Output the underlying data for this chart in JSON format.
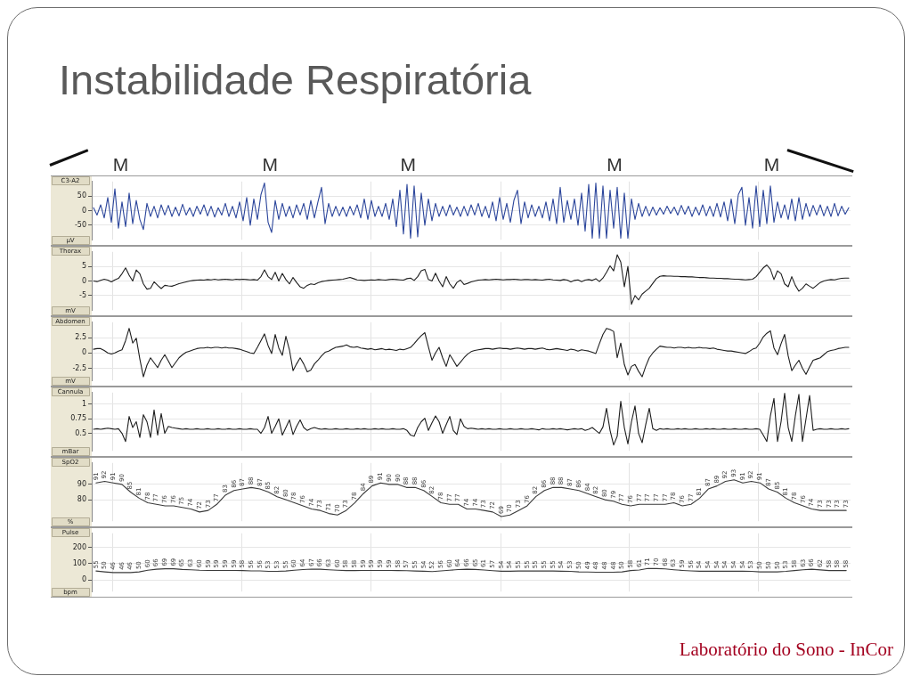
{
  "chart_data": [
    {
      "type": "other",
      "title": "Instabilidade Respiratória"
    },
    {
      "type": "line",
      "title": "C3-A2",
      "ylabel": "µV",
      "annotations": [
        "M",
        "M",
        "M",
        "M",
        "M"
      ],
      "marker": "none",
      "grid": true,
      "ylim": [
        -100,
        100
      ],
      "yticks": [
        -50,
        0,
        50
      ],
      "color": "#2b459b",
      "categories": [
        null,
        null,
        null,
        null,
        null,
        null,
        null,
        null,
        null,
        null,
        null,
        null,
        null,
        null,
        null,
        null,
        null,
        null,
        null,
        null,
        null,
        null,
        null,
        null,
        null,
        null,
        null,
        null,
        null,
        null,
        null,
        null,
        null,
        null,
        null,
        null,
        null,
        null,
        null,
        null,
        null,
        null,
        null,
        null,
        null,
        null,
        null,
        null,
        null,
        null,
        null,
        null,
        null,
        null,
        null,
        null,
        null,
        null,
        null,
        null,
        null,
        null,
        null,
        null,
        null,
        null,
        null,
        null,
        null,
        null,
        null,
        null,
        null,
        null,
        null,
        null,
        null,
        null,
        null,
        null,
        null,
        null,
        null,
        null,
        null,
        null,
        null,
        null,
        null,
        null,
        null,
        null,
        null,
        null,
        null,
        null,
        null,
        null,
        null,
        null,
        null,
        null,
        null,
        null,
        null,
        null,
        null,
        null,
        null,
        null,
        null,
        null,
        null,
        null,
        null,
        null,
        null,
        null,
        null,
        null,
        null,
        null,
        null,
        null,
        null,
        null,
        null,
        null,
        null,
        null,
        null,
        null,
        null,
        null,
        null,
        null,
        null,
        null,
        null,
        null,
        null,
        null,
        null,
        null,
        null,
        null,
        null,
        null,
        null,
        null,
        null,
        null,
        null,
        null,
        null,
        null,
        null,
        null,
        null,
        null,
        null,
        null,
        null,
        null,
        null,
        null,
        null,
        null,
        null,
        null,
        null,
        null,
        null,
        null,
        null,
        null,
        null,
        null,
        null,
        null,
        null,
        null,
        null,
        null,
        null,
        null,
        null,
        null,
        null,
        null,
        null,
        null,
        null,
        null,
        null,
        null,
        null,
        null,
        null,
        null,
        null,
        null,
        null,
        null,
        null,
        null,
        null,
        null,
        null,
        null,
        null,
        null,
        null
      ],
      "values": [
        10,
        -15,
        20,
        -25,
        45,
        -40,
        75,
        -60,
        30,
        -55,
        60,
        -45,
        35,
        -30,
        -65,
        25,
        -20,
        15,
        -25,
        20,
        -15,
        18,
        -20,
        12,
        -18,
        22,
        -15,
        10,
        -20,
        15,
        -12,
        20,
        -18,
        15,
        -22,
        10,
        -15,
        25,
        -20,
        15,
        -25,
        30,
        -35,
        45,
        -50,
        40,
        -30,
        55,
        95,
        -40,
        -75,
        35,
        -30,
        25,
        -20,
        15,
        -25,
        20,
        -15,
        25,
        -30,
        35,
        -25,
        30,
        80,
        -45,
        25,
        -20,
        15,
        -18,
        12,
        -20,
        15,
        -15,
        20,
        -25,
        40,
        -30,
        35,
        -20,
        15,
        -20,
        25,
        -30,
        40,
        -55,
        70,
        -80,
        90,
        -95,
        85,
        -90,
        60,
        -50,
        40,
        -35,
        25,
        -20,
        15,
        -18,
        20,
        -15,
        12,
        -20,
        15,
        -18,
        20,
        -15,
        25,
        -20,
        15,
        -25,
        30,
        -35,
        45,
        -30,
        25,
        -40,
        35,
        70,
        -45,
        30,
        -25,
        20,
        -20,
        15,
        -25,
        30,
        -35,
        40,
        -45,
        80,
        -40,
        35,
        -30,
        40,
        -50,
        60,
        -70,
        90,
        -95,
        95,
        -95,
        85,
        -95,
        70,
        -60,
        80,
        -95,
        60,
        -95,
        40,
        -30,
        25,
        -20,
        15,
        -18,
        12,
        -15,
        10,
        -12,
        15,
        -10,
        12,
        -15,
        18,
        -12,
        15,
        -20,
        12,
        -15,
        20,
        -18,
        15,
        -20,
        25,
        -22,
        30,
        -35,
        40,
        -45,
        55,
        80,
        -50,
        45,
        -60,
        85,
        -55,
        70,
        -45,
        85,
        -40,
        30,
        -25,
        20,
        -30,
        40,
        -35,
        45,
        -30,
        25,
        -20,
        18,
        -15,
        20,
        -18,
        15,
        -20,
        25,
        -18,
        15,
        -12,
        10
      ]
    },
    {
      "type": "line",
      "title": "Thorax",
      "ylabel": "mV",
      "marker": "none",
      "grid": true,
      "ylim": [
        -10,
        10
      ],
      "yticks": [
        -5,
        0,
        5
      ],
      "color": "#1e1e1e",
      "categories": [
        null,
        null,
        null,
        null,
        null,
        null,
        null,
        null,
        null,
        null,
        null,
        null,
        null,
        null,
        null,
        null,
        null,
        null,
        null,
        null,
        null,
        null,
        null,
        null,
        null,
        null,
        null,
        null,
        null,
        null,
        null,
        null,
        null,
        null,
        null,
        null,
        null,
        null,
        null,
        null,
        null,
        null,
        null,
        null,
        null,
        null,
        null,
        null,
        null,
        null,
        null,
        null,
        null,
        null,
        null,
        null,
        null,
        null,
        null,
        null,
        null,
        null,
        null,
        null,
        null,
        null,
        null,
        null,
        null,
        null,
        null,
        null,
        null,
        null,
        null,
        null,
        null,
        null,
        null,
        null,
        null,
        null,
        null,
        null,
        null,
        null,
        null,
        null,
        null,
        null,
        null,
        null,
        null,
        null,
        null,
        null,
        null,
        null,
        null,
        null,
        null,
        null,
        null,
        null,
        null,
        null,
        null,
        null,
        null,
        null,
        null,
        null,
        null,
        null,
        null,
        null,
        null,
        null,
        null,
        null,
        null,
        null,
        null,
        null,
        null,
        null,
        null,
        null,
        null,
        null,
        null,
        null,
        null,
        null,
        null,
        null,
        null,
        null,
        null,
        null,
        null,
        null,
        null,
        null,
        null,
        null,
        null,
        null,
        null,
        null,
        null,
        null,
        null,
        null,
        null,
        null,
        null,
        null,
        null,
        null,
        null,
        null,
        null,
        null,
        null,
        null,
        null,
        null,
        null,
        null,
        null,
        null,
        null,
        null,
        null,
        null,
        null,
        null,
        null,
        null,
        null,
        null,
        null,
        null,
        null,
        null,
        null,
        null,
        null,
        null,
        null,
        null,
        null,
        null,
        null,
        null,
        null,
        null,
        null,
        null,
        null,
        null,
        null,
        null,
        null,
        null,
        null,
        null,
        null,
        null,
        null,
        null,
        null
      ],
      "values": [
        0,
        -0.2,
        0.2,
        0.6,
        0.3,
        -0.3,
        0.4,
        0.9,
        2.5,
        4.5,
        2.0,
        0.0,
        3.8,
        2.5,
        -1.0,
        -2.8,
        -2.5,
        -0.3,
        -1.5,
        -2.6,
        -1.5,
        -1.7,
        -1.8,
        -1.4,
        -0.9,
        -0.6,
        -0.3,
        0.0,
        0.2,
        0.3,
        0.4,
        0.3,
        0.5,
        0.4,
        0.6,
        0.4,
        0.5,
        0.6,
        0.5,
        0.4,
        0.6,
        0.5,
        0.6,
        0.5,
        0.4,
        0.5,
        0.3,
        1.5,
        3.8,
        1.5,
        0.5,
        3.0,
        0.0,
        2.6,
        0.5,
        -1.0,
        1.2,
        -0.5,
        -2.0,
        -2.5,
        -1.5,
        -1.0,
        -1.2,
        -0.6,
        -0.2,
        0.0,
        0.2,
        0.3,
        0.4,
        0.5,
        0.6,
        0.9,
        1.2,
        0.8,
        0.4,
        0.3,
        0.2,
        0.3,
        0.4,
        0.3,
        0.5,
        0.4,
        0.3,
        0.5,
        0.6,
        0.5,
        0.4,
        0.3,
        0.8,
        1.0,
        0.2,
        1.5,
        3.5,
        4.0,
        0.5,
        0.0,
        2.7,
        0.0,
        -2.0,
        1.5,
        -1.0,
        -2.5,
        -0.5,
        0.3,
        -1.2,
        -0.8,
        -0.3,
        0.0,
        0.3,
        0.4,
        0.5,
        0.4,
        0.5,
        0.6,
        0.5,
        0.4,
        0.5,
        0.5,
        0.6,
        0.5,
        0.4,
        0.5,
        0.5,
        0.4,
        0.5,
        0.4,
        0.3,
        0.5,
        0.6,
        0.4,
        0.3,
        0.2,
        0.5,
        0.3,
        -0.3,
        0.2,
        0.4,
        -0.2,
        0.3,
        0.5,
        0.2,
        0.8,
        -0.2,
        1.0,
        3.0,
        5.2,
        3.5,
        9.0,
        6.5,
        -2.0,
        5.0,
        -8.0,
        -5.0,
        -6.5,
        -4.5,
        -3.5,
        -2.5,
        -0.8,
        0.8,
        1.6,
        1.8,
        1.7,
        1.7,
        1.6,
        1.6,
        1.5,
        1.5,
        1.4,
        1.4,
        1.3,
        1.2,
        1.2,
        1.1,
        1.0,
        1.0,
        0.9,
        0.9,
        0.8,
        0.8,
        0.7,
        0.6,
        0.6,
        0.5,
        0.4,
        0.5,
        0.6,
        1.5,
        3.0,
        4.5,
        5.5,
        4.0,
        0.5,
        3.5,
        2.5,
        -1.0,
        -2.0,
        1.5,
        -1.5,
        -3.5,
        -2.5,
        -1.0,
        -1.8,
        -2.5,
        -1.5,
        -0.5,
        0.0,
        0.3,
        0.5,
        0.4,
        0.7,
        0.9,
        1.0,
        1.0
      ]
    },
    {
      "type": "line",
      "title": "Abdomen",
      "ylabel": "mV",
      "marker": "none",
      "grid": true,
      "ylim": [
        -4.5,
        5
      ],
      "yticks": [
        -2.5,
        0,
        2.5
      ],
      "color": "#1e1e1e",
      "categories": [
        null,
        null,
        null,
        null,
        null,
        null,
        null,
        null,
        null,
        null,
        null,
        null,
        null,
        null,
        null,
        null,
        null,
        null,
        null,
        null,
        null,
        null,
        null,
        null,
        null,
        null,
        null,
        null,
        null,
        null,
        null,
        null,
        null,
        null,
        null,
        null,
        null,
        null,
        null,
        null,
        null,
        null,
        null,
        null,
        null,
        null,
        null,
        null,
        null,
        null,
        null,
        null,
        null,
        null,
        null,
        null,
        null,
        null,
        null,
        null,
        null,
        null,
        null,
        null,
        null,
        null,
        null,
        null,
        null,
        null,
        null,
        null,
        null,
        null,
        null,
        null,
        null,
        null,
        null,
        null,
        null,
        null,
        null,
        null,
        null,
        null,
        null,
        null,
        null,
        null,
        null,
        null,
        null,
        null,
        null,
        null,
        null,
        null,
        null,
        null,
        null,
        null,
        null,
        null,
        null,
        null,
        null,
        null,
        null,
        null,
        null,
        null,
        null,
        null,
        null,
        null,
        null,
        null,
        null,
        null,
        null,
        null,
        null,
        null,
        null,
        null,
        null,
        null,
        null,
        null,
        null,
        null,
        null,
        null,
        null,
        null,
        null,
        null,
        null,
        null,
        null,
        null,
        null,
        null,
        null,
        null,
        null,
        null,
        null,
        null,
        null,
        null,
        null,
        null,
        null,
        null,
        null,
        null,
        null,
        null,
        null,
        null,
        null,
        null,
        null,
        null,
        null,
        null,
        null,
        null,
        null,
        null,
        null,
        null,
        null,
        null,
        null,
        null,
        null,
        null,
        null,
        null,
        null,
        null,
        null,
        null,
        null,
        null,
        null,
        null,
        null,
        null,
        null,
        null,
        null,
        null,
        null,
        null,
        null,
        null,
        null,
        null,
        null,
        null,
        null,
        null,
        null,
        null,
        null,
        null,
        null,
        null,
        null
      ],
      "values": [
        0.6,
        0.7,
        0.7,
        0.4,
        0.0,
        -0.2,
        0.0,
        0.3,
        0.5,
        2.0,
        4.0,
        1.6,
        2.4,
        -1.0,
        -3.9,
        -2.0,
        -0.8,
        -1.6,
        -2.4,
        -1.2,
        -0.3,
        -1.3,
        -2.4,
        -1.6,
        -0.8,
        -0.3,
        0.1,
        0.3,
        0.5,
        0.7,
        0.8,
        0.8,
        0.9,
        0.8,
        0.9,
        0.9,
        0.8,
        0.9,
        0.8,
        0.8,
        0.7,
        0.6,
        0.4,
        0.2,
        0.0,
        -0.1,
        0.9,
        2.0,
        3.1,
        1.2,
        -0.1,
        3.0,
        0.8,
        -0.4,
        2.7,
        0.5,
        -2.9,
        -1.8,
        -0.8,
        -1.8,
        -3.1,
        -2.8,
        -1.8,
        -1.2,
        -0.5,
        0.1,
        0.3,
        0.6,
        0.9,
        1.0,
        1.1,
        1.3,
        1.0,
        0.9,
        1.0,
        0.8,
        0.7,
        0.6,
        0.7,
        0.5,
        0.6,
        0.7,
        0.5,
        0.6,
        0.5,
        0.4,
        0.6,
        0.5,
        0.7,
        0.9,
        1.5,
        2.2,
        2.8,
        3.3,
        1.0,
        -1.2,
        0.0,
        0.9,
        -0.8,
        -2.2,
        -0.3,
        -1.2,
        -2.2,
        -1.5,
        -0.8,
        -0.2,
        0.2,
        0.4,
        0.5,
        0.6,
        0.7,
        0.7,
        0.6,
        0.7,
        0.8,
        0.7,
        0.7,
        0.6,
        0.7,
        0.8,
        0.7,
        0.6,
        0.7,
        0.7,
        0.6,
        0.7,
        0.8,
        0.6,
        0.5,
        0.6,
        0.7,
        0.6,
        0.5,
        0.4,
        0.6,
        0.5,
        0.3,
        0.5,
        0.4,
        0.3,
        0.1,
        -0.1,
        1.5,
        3.0,
        4.0,
        3.8,
        3.5,
        -0.8,
        1.6,
        -1.9,
        -3.6,
        -2.2,
        -1.9,
        -3.0,
        -3.9,
        -2.2,
        -0.8,
        0.0,
        0.6,
        1.1,
        1.0,
        0.9,
        0.9,
        0.8,
        0.9,
        0.9,
        0.8,
        0.9,
        0.8,
        0.8,
        0.9,
        0.8,
        0.8,
        0.7,
        0.8,
        0.6,
        0.5,
        0.4,
        0.3,
        0.3,
        0.2,
        0.1,
        0.0,
        -0.1,
        0.2,
        0.6,
        0.8,
        1.6,
        2.6,
        3.2,
        3.6,
        0.8,
        -0.3,
        1.5,
        3.0,
        -0.5,
        -2.9,
        -2.0,
        -1.2,
        -2.5,
        -3.5,
        -2.3,
        -1.2,
        -1.0,
        -0.8,
        -0.3,
        0.2,
        0.4,
        0.5,
        0.7,
        0.8,
        0.9,
        0.9
      ]
    },
    {
      "type": "line",
      "title": "Cannula",
      "ylabel": "mBar",
      "marker": "none",
      "grid": true,
      "ylim": [
        0.2,
        1.2
      ],
      "yticks": [
        0.5,
        0.75,
        1
      ],
      "color": "#1e1e1e",
      "categories": [
        null,
        null,
        null,
        null,
        null,
        null,
        null,
        null,
        null,
        null,
        null,
        null,
        null,
        null,
        null,
        null,
        null,
        null,
        null,
        null,
        null,
        null,
        null,
        null,
        null,
        null,
        null,
        null,
        null,
        null,
        null,
        null,
        null,
        null,
        null,
        null,
        null,
        null,
        null,
        null,
        null,
        null,
        null,
        null,
        null,
        null,
        null,
        null,
        null,
        null,
        null,
        null,
        null,
        null,
        null,
        null,
        null,
        null,
        null,
        null,
        null,
        null,
        null,
        null,
        null,
        null,
        null,
        null,
        null,
        null,
        null,
        null,
        null,
        null,
        null,
        null,
        null,
        null,
        null,
        null,
        null,
        null,
        null,
        null,
        null,
        null,
        null,
        null,
        null,
        null,
        null,
        null,
        null,
        null,
        null,
        null,
        null,
        null,
        null,
        null,
        null,
        null,
        null,
        null,
        null,
        null,
        null,
        null,
        null,
        null,
        null,
        null,
        null,
        null,
        null,
        null,
        null,
        null,
        null,
        null,
        null,
        null,
        null,
        null,
        null,
        null,
        null,
        null,
        null,
        null,
        null,
        null,
        null,
        null,
        null,
        null,
        null,
        null,
        null,
        null,
        null,
        null,
        null,
        null,
        null,
        null,
        null,
        null,
        null,
        null,
        null,
        null,
        null,
        null,
        null,
        null,
        null,
        null,
        null,
        null,
        null,
        null,
        null,
        null,
        null,
        null,
        null,
        null,
        null,
        null,
        null,
        null,
        null,
        null,
        null,
        null,
        null,
        null,
        null,
        null,
        null,
        null,
        null,
        null,
        null,
        null,
        null,
        null,
        null,
        null,
        null,
        null,
        null,
        null,
        null,
        null,
        null,
        null,
        null,
        null,
        null,
        null,
        null,
        null,
        null,
        null,
        null,
        null,
        null,
        null,
        null,
        null,
        null
      ],
      "values": [
        0.57,
        0.58,
        0.57,
        0.58,
        0.59,
        0.58,
        0.57,
        0.58,
        0.5,
        0.36,
        0.79,
        0.6,
        0.7,
        0.43,
        0.82,
        0.7,
        0.43,
        0.9,
        0.47,
        0.84,
        0.5,
        0.62,
        0.6,
        0.59,
        0.58,
        0.57,
        0.58,
        0.57,
        0.57,
        0.58,
        0.57,
        0.57,
        0.58,
        0.57,
        0.57,
        0.58,
        0.57,
        0.57,
        0.58,
        0.57,
        0.57,
        0.58,
        0.57,
        0.57,
        0.58,
        0.57,
        0.57,
        0.5,
        0.6,
        0.79,
        0.5,
        0.62,
        0.75,
        0.47,
        0.6,
        0.73,
        0.48,
        0.62,
        0.73,
        0.6,
        0.55,
        0.58,
        0.6,
        0.58,
        0.57,
        0.58,
        0.57,
        0.57,
        0.58,
        0.57,
        0.57,
        0.58,
        0.57,
        0.57,
        0.58,
        0.57,
        0.58,
        0.57,
        0.57,
        0.58,
        0.57,
        0.58,
        0.57,
        0.57,
        0.58,
        0.57,
        0.57,
        0.58,
        0.55,
        0.47,
        0.45,
        0.6,
        0.7,
        0.76,
        0.55,
        0.68,
        0.8,
        0.7,
        0.5,
        0.65,
        0.79,
        0.55,
        0.48,
        0.75,
        0.62,
        0.58,
        0.59,
        0.58,
        0.57,
        0.58,
        0.57,
        0.58,
        0.57,
        0.57,
        0.58,
        0.57,
        0.57,
        0.58,
        0.57,
        0.57,
        0.58,
        0.57,
        0.57,
        0.58,
        0.57,
        0.56,
        0.58,
        0.57,
        0.57,
        0.58,
        0.57,
        0.58,
        0.57,
        0.56,
        0.57,
        0.58,
        0.57,
        0.58,
        0.55,
        0.57,
        0.6,
        0.55,
        0.5,
        0.61,
        0.93,
        0.55,
        0.3,
        0.45,
        1.05,
        0.6,
        0.32,
        0.7,
        0.97,
        0.5,
        0.34,
        0.65,
        0.93,
        0.58,
        0.55,
        0.58,
        0.57,
        0.58,
        0.57,
        0.57,
        0.58,
        0.57,
        0.58,
        0.57,
        0.57,
        0.58,
        0.57,
        0.57,
        0.58,
        0.57,
        0.58,
        0.57,
        0.57,
        0.58,
        0.57,
        0.57,
        0.58,
        0.57,
        0.57,
        0.58,
        0.57,
        0.57,
        0.58,
        0.57,
        0.47,
        0.36,
        0.8,
        1.1,
        0.36,
        0.7,
        1.19,
        0.6,
        0.36,
        0.8,
        1.17,
        0.36,
        0.75,
        1.15,
        0.55,
        0.57,
        0.58,
        0.57,
        0.57,
        0.58,
        0.57,
        0.57,
        0.58,
        0.57,
        0.58
      ]
    },
    {
      "type": "line",
      "title": "SpO2",
      "ylabel": "%",
      "marker": "none",
      "grid": true,
      "data_labels": true,
      "ylim": [
        66,
        104
      ],
      "yticks": [
        80,
        90
      ],
      "color": "#3a3a3a",
      "categories": [
        null,
        null,
        null,
        null,
        null,
        null,
        null,
        null,
        null,
        null,
        null,
        null,
        null,
        null,
        null,
        null,
        null,
        null,
        null,
        null,
        null,
        null,
        null,
        null,
        null,
        null,
        null,
        null,
        null,
        null,
        null,
        null,
        null,
        null,
        null,
        null,
        null,
        null,
        null,
        null,
        null,
        null,
        null,
        null,
        null,
        null,
        null,
        null,
        null,
        null,
        null,
        null,
        null,
        null,
        null,
        null,
        null,
        null,
        null,
        null,
        null,
        null,
        null,
        null,
        null,
        null,
        null,
        null,
        null,
        null,
        null,
        null,
        null,
        null,
        null,
        null,
        null,
        null,
        null,
        null,
        null,
        null,
        null,
        null,
        null,
        null,
        null,
        null
      ],
      "values": [
        91,
        92,
        91,
        90,
        85,
        81,
        78,
        77,
        76,
        76,
        75,
        74,
        72,
        73,
        77,
        83,
        86,
        87,
        88,
        87,
        85,
        82,
        80,
        78,
        76,
        74,
        73,
        71,
        70,
        73,
        78,
        84,
        89,
        91,
        90,
        90,
        88,
        88,
        86,
        82,
        78,
        77,
        77,
        74,
        74,
        73,
        72,
        69,
        70,
        73,
        76,
        82,
        86,
        88,
        88,
        87,
        86,
        84,
        82,
        80,
        79,
        77,
        76,
        77,
        77,
        77,
        77,
        78,
        76,
        77,
        81,
        87,
        89,
        92,
        93,
        91,
        92,
        91,
        87,
        85,
        81,
        78,
        76,
        74,
        73,
        73,
        73,
        73
      ]
    },
    {
      "type": "line",
      "title": "Pulse",
      "ylabel": "bpm",
      "marker": "none",
      "grid": true,
      "data_labels": true,
      "ylim": [
        -70,
        285
      ],
      "yticks": [
        0,
        100,
        200
      ],
      "color": "#3a3a3a",
      "categories": [
        null,
        null,
        null,
        null,
        null,
        null,
        null,
        null,
        null,
        null,
        null,
        null,
        null,
        null,
        null,
        null,
        null,
        null,
        null,
        null,
        null,
        null,
        null,
        null,
        null,
        null,
        null,
        null,
        null,
        null,
        null,
        null,
        null,
        null,
        null,
        null,
        null,
        null,
        null,
        null,
        null,
        null,
        null,
        null,
        null,
        null,
        null,
        null,
        null,
        null,
        null,
        null,
        null,
        null,
        null,
        null,
        null,
        null,
        null,
        null,
        null,
        null,
        null,
        null,
        null,
        null,
        null,
        null,
        null,
        null,
        null,
        null,
        null,
        null,
        null,
        null,
        null,
        null,
        null,
        null,
        null,
        null,
        null,
        null,
        null,
        null,
        null,
        null
      ],
      "values": [
        55,
        50,
        46,
        46,
        46,
        50,
        60,
        66,
        69,
        69,
        65,
        63,
        60,
        59,
        59,
        59,
        59,
        58,
        56,
        56,
        53,
        53,
        55,
        60,
        64,
        67,
        66,
        63,
        60,
        58,
        58,
        59,
        59,
        59,
        59,
        58,
        57,
        55,
        54,
        52,
        56,
        60,
        64,
        66,
        65,
        61,
        57,
        54,
        54,
        55,
        55,
        55,
        55,
        55,
        54,
        53,
        50,
        49,
        48,
        48,
        48,
        50,
        58,
        61,
        71,
        70,
        68,
        63,
        59,
        56,
        54,
        54,
        54,
        54,
        54,
        54,
        53,
        50,
        50,
        50,
        53,
        58,
        63,
        66,
        62,
        58,
        58,
        58
      ]
    },
    {
      "type": "other",
      "annotations": [
        "Laboratório do Sono - InCor"
      ]
    }
  ]
}
